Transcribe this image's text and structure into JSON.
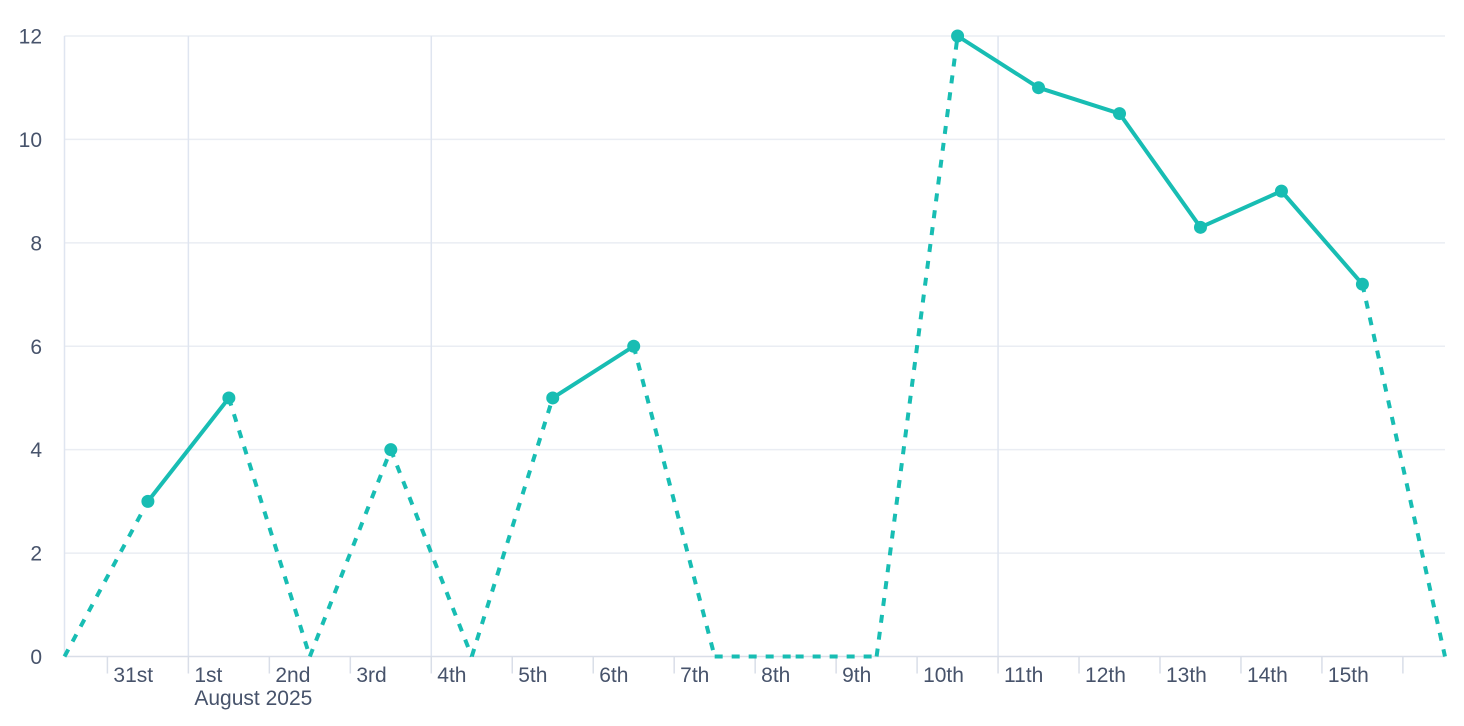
{
  "chart_data": {
    "type": "line",
    "title": "",
    "legend": false,
    "grid": true,
    "y_axis": {
      "min": 0,
      "max": 12,
      "tick_values": [
        0,
        2,
        4,
        6,
        8,
        10,
        12
      ]
    },
    "x_axis": {
      "unit": "day",
      "day_labels": [
        "31st",
        "1st",
        "2nd",
        "3rd",
        "4th",
        "5th",
        "6th",
        "7th",
        "8th",
        "9th",
        "10th",
        "11th",
        "12th",
        "13th",
        "14th",
        "15th"
      ],
      "month_caption": "August 2025",
      "month_caption_day_index": 1,
      "gridline_day_indices": [
        1,
        4,
        11
      ],
      "domain": [
        -0.53,
        16.52
      ]
    },
    "points": [
      {
        "t": -0.53,
        "day": null,
        "value": 0,
        "marker": false,
        "to_next": "dashed"
      },
      {
        "t": 0.5,
        "day": "31st",
        "value": 3,
        "marker": true,
        "to_next": "solid"
      },
      {
        "t": 1.5,
        "day": "1st",
        "value": 5,
        "marker": true,
        "to_next": "dashed"
      },
      {
        "t": 2.5,
        "day": "2nd",
        "value": 0,
        "marker": false,
        "to_next": "dashed"
      },
      {
        "t": 3.5,
        "day": "3rd",
        "value": 4,
        "marker": true,
        "to_next": "dashed"
      },
      {
        "t": 4.5,
        "day": "4th",
        "value": 0,
        "marker": false,
        "to_next": "dashed"
      },
      {
        "t": 5.5,
        "day": "5th",
        "value": 5,
        "marker": true,
        "to_next": "solid"
      },
      {
        "t": 6.5,
        "day": "6th",
        "value": 6,
        "marker": true,
        "to_next": "dashed"
      },
      {
        "t": 7.5,
        "day": "7th",
        "value": 0,
        "marker": false,
        "to_next": "dashed"
      },
      {
        "t": 8.5,
        "day": "8th",
        "value": 0,
        "marker": false,
        "to_next": "dashed"
      },
      {
        "t": 9.5,
        "day": "9th",
        "value": 0,
        "marker": false,
        "to_next": "dashed"
      },
      {
        "t": 10.5,
        "day": "10th",
        "value": 12,
        "marker": true,
        "to_next": "solid"
      },
      {
        "t": 11.5,
        "day": "11th",
        "value": 11,
        "marker": true,
        "to_next": "solid"
      },
      {
        "t": 12.5,
        "day": "12th",
        "value": 10.5,
        "marker": true,
        "to_next": "solid"
      },
      {
        "t": 13.5,
        "day": "13th",
        "value": 8.3,
        "marker": true,
        "to_next": "solid"
      },
      {
        "t": 14.5,
        "day": "14th",
        "value": 9,
        "marker": true,
        "to_next": "solid"
      },
      {
        "t": 15.5,
        "day": "15th",
        "value": 7.2,
        "marker": true,
        "to_next": "dashed"
      },
      {
        "t": 16.52,
        "day": null,
        "value": 0,
        "marker": false,
        "to_next": null
      }
    ],
    "colors": {
      "line": "#18BDB3",
      "marker": "#18BDB3",
      "axis_text": "#47536B",
      "h_gridline": "#EAEDF3",
      "v_gridline": "#DFE5F0",
      "axis_line": "#D9DEE8",
      "background": "#FFFFFF"
    }
  }
}
